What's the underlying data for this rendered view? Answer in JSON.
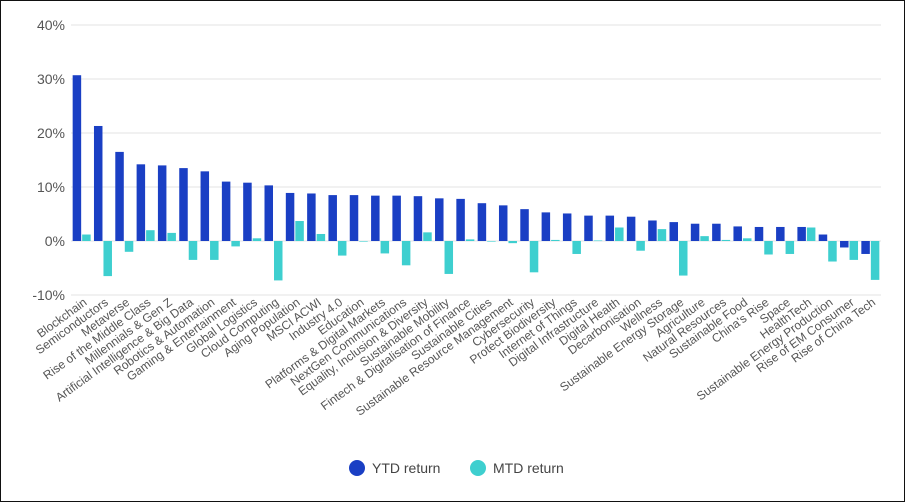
{
  "chart_data": {
    "type": "bar",
    "title": "",
    "xlabel": "",
    "ylabel": "",
    "ylim": [
      -10,
      40
    ],
    "yticks": [
      "-10%",
      "0%",
      "10%",
      "20%",
      "30%",
      "40%"
    ],
    "grid": true,
    "legend_position": "bottom",
    "categories": [
      "Blockchain",
      "Semiconductors",
      "Metaverse",
      "Rise of the Middle Class",
      "Millennials & Gen Z",
      "Artificial Intelligence & Big Data",
      "Robotics & Automation",
      "Gaming & Entertainment",
      "Global Logistics",
      "Cloud Computing",
      "Aging Population",
      "MSCI ACWI",
      "Industry 4.0",
      "Education",
      "Platforms & Digital Markets",
      "NextGen Communications",
      "Equality, Inclusion & Diversity",
      "Sustainable Mobility",
      "Fintech & Digitalisation of Finance",
      "Sustainable Cities",
      "Sustainable Resource Management",
      "Cybersecurity",
      "Protect Biodiversity",
      "Internet of Things",
      "Digital Infrastructure",
      "Digital Health",
      "Decarbonisation",
      "Wellness",
      "Sustainable Energy Storage",
      "Agriculture",
      "Natural Resources",
      "Sustainable Food",
      "China's Rise",
      "Space",
      "HealthTech",
      "Sustainable Energy Production",
      "Rise of EM Consumer",
      "Rise of China Tech"
    ],
    "series": [
      {
        "name": "YTD return",
        "color": "#1a3fc4",
        "values": [
          30.7,
          21.3,
          16.5,
          14.2,
          14.0,
          13.5,
          12.9,
          11.0,
          10.8,
          10.3,
          8.9,
          8.8,
          8.5,
          8.5,
          8.4,
          8.4,
          8.3,
          7.9,
          7.8,
          7.0,
          6.6,
          5.9,
          5.3,
          5.1,
          4.7,
          4.7,
          4.5,
          3.8,
          3.5,
          3.2,
          3.2,
          2.7,
          2.6,
          2.6,
          2.6,
          1.2,
          -1.2,
          -2.4
        ]
      },
      {
        "name": "MTD return",
        "color": "#3ecfcf",
        "values": [
          1.2,
          -6.5,
          -2.0,
          2.0,
          1.5,
          -3.5,
          -3.5,
          -1.0,
          0.5,
          -7.3,
          3.7,
          1.3,
          -2.7,
          0.0,
          -2.3,
          -4.5,
          1.6,
          -6.1,
          0.3,
          0.0,
          -0.4,
          -5.8,
          0.2,
          -2.4,
          0.1,
          2.5,
          -1.8,
          2.2,
          -6.4,
          0.9,
          0.2,
          0.5,
          -2.5,
          -2.4,
          2.5,
          -3.8,
          -3.5,
          -7.2
        ]
      }
    ]
  }
}
